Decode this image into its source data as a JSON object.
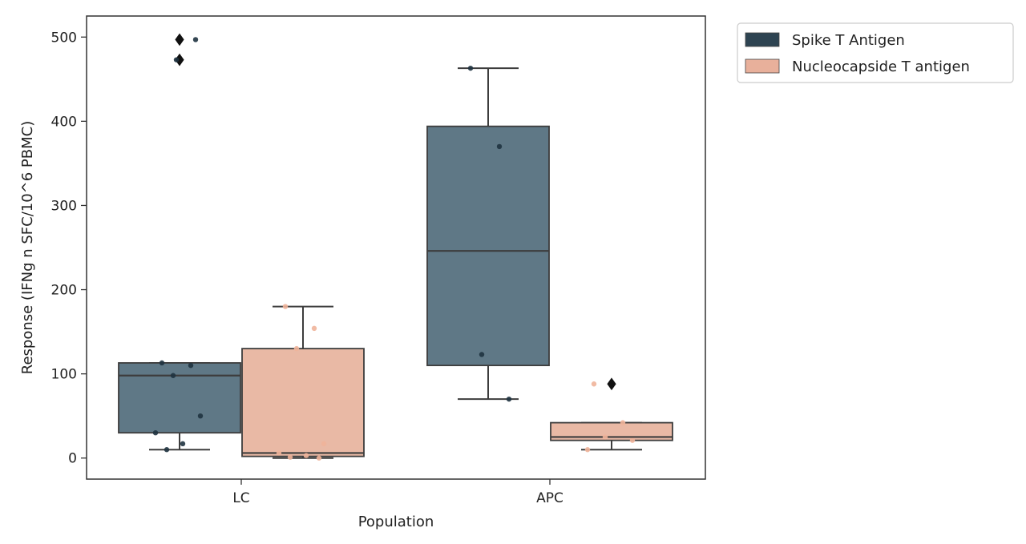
{
  "chart_data": {
    "type": "box",
    "xlabel": "Population",
    "ylabel": "Response (IFNg n SFC/10^6 PBMC)",
    "categories": [
      "LC",
      "APC"
    ],
    "ylim": [
      -25,
      525
    ],
    "yticks": [
      0,
      100,
      200,
      300,
      400,
      500
    ],
    "grid": false,
    "legend": {
      "position": "top-right, outside plot"
    },
    "series": [
      {
        "name": "Spike T Antigen",
        "color": "#5f7886",
        "legend_color": "#2e4452",
        "boxes": [
          {
            "category": "LC",
            "q1": 30,
            "median": 98,
            "q3": 113,
            "whisker_low": 10,
            "whisker_high": 113,
            "outliers": [
              497,
              473
            ],
            "points": [
              113,
              110,
              98,
              50,
              30,
              17,
              10,
              497,
              473
            ]
          },
          {
            "category": "APC",
            "q1": 110,
            "median": 246,
            "q3": 394,
            "whisker_low": 70,
            "whisker_high": 463,
            "outliers": [],
            "points": [
              463,
              370,
              123,
              70
            ]
          }
        ]
      },
      {
        "name": "Nucleocapside T antigen",
        "color": "#e9b9a5",
        "legend_color": "#e8b09b",
        "boxes": [
          {
            "category": "LC",
            "q1": 2,
            "median": 6,
            "q3": 130,
            "whisker_low": 0,
            "whisker_high": 180,
            "outliers": [],
            "points": [
              180,
              154,
              130,
              17,
              6,
              3,
              1,
              0
            ]
          },
          {
            "category": "APC",
            "q1": 21,
            "median": 25,
            "q3": 42,
            "whisker_low": 10,
            "whisker_high": 42,
            "outliers": [
              88
            ],
            "points": [
              88,
              42,
              25,
              21,
              10
            ]
          }
        ]
      }
    ]
  }
}
